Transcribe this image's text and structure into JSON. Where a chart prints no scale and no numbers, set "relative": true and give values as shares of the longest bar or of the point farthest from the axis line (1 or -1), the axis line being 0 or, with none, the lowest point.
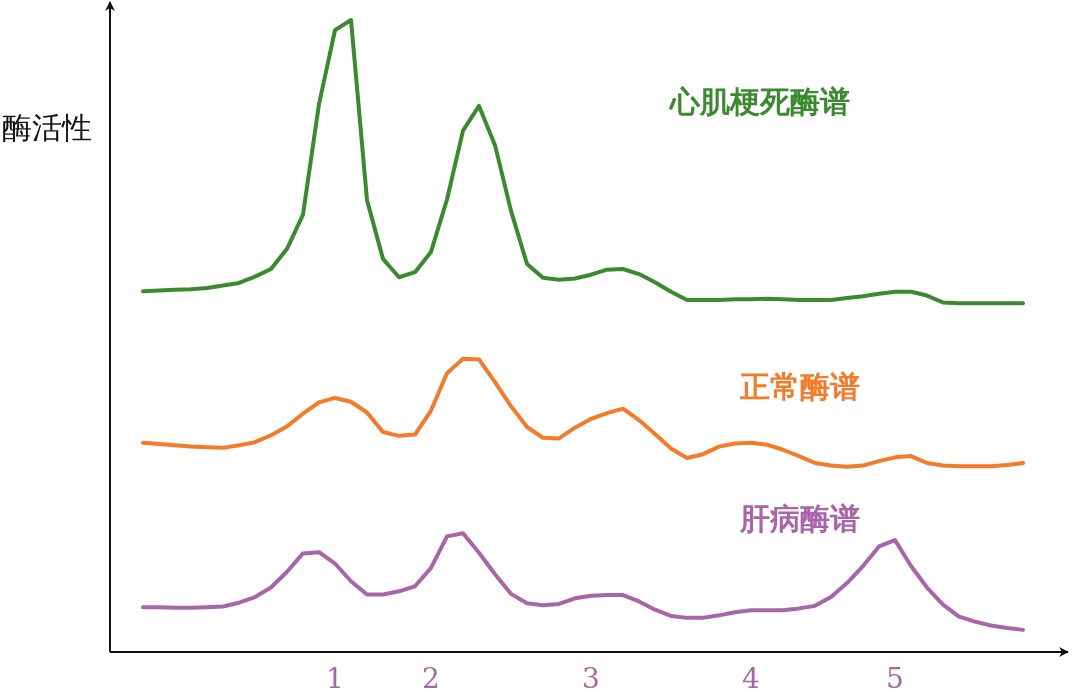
{
  "chart_data": {
    "type": "line",
    "ylabel": "酶活性",
    "relative": true,
    "categories": [
      null,
      null,
      null,
      null,
      null,
      null,
      null,
      null,
      null,
      null,
      null,
      null,
      "1",
      null,
      null,
      null,
      null,
      null,
      "2",
      null,
      null,
      null,
      null,
      null,
      null,
      null,
      null,
      null,
      "3",
      null,
      null,
      null,
      null,
      null,
      null,
      null,
      null,
      null,
      "4",
      null,
      null,
      null,
      null,
      null,
      null,
      null,
      null,
      "5",
      null,
      null,
      null,
      null,
      null,
      null,
      null,
      null
    ],
    "series": [
      {
        "name": "心肌梗死酶谱",
        "color": "#3b8a30",
        "values": [
          0.571,
          0.572,
          0.573,
          0.574,
          0.576,
          0.58,
          0.584,
          0.594,
          0.606,
          0.638,
          0.692,
          0.867,
          0.984,
          1.0,
          0.715,
          0.622,
          0.593,
          0.601,
          0.633,
          0.716,
          0.825,
          0.864,
          0.802,
          0.698,
          0.614,
          0.592,
          0.589,
          0.591,
          0.597,
          0.605,
          0.606,
          0.598,
          0.585,
          0.57,
          0.557,
          0.557,
          0.557,
          0.558,
          0.558,
          0.559,
          0.558,
          0.557,
          0.557,
          0.557,
          0.56,
          0.563,
          0.567,
          0.57,
          0.57,
          0.564,
          0.553,
          0.552,
          0.552,
          0.552,
          0.552,
          0.552
        ]
      },
      {
        "name": "正常酶谱",
        "color": "#f47b2a",
        "values": [
          0.331,
          0.329,
          0.327,
          0.325,
          0.324,
          0.323,
          0.327,
          0.332,
          0.343,
          0.357,
          0.377,
          0.395,
          0.402,
          0.396,
          0.379,
          0.348,
          0.342,
          0.344,
          0.382,
          0.441,
          0.464,
          0.463,
          0.427,
          0.389,
          0.356,
          0.339,
          0.338,
          0.355,
          0.369,
          0.378,
          0.385,
          0.367,
          0.345,
          0.322,
          0.307,
          0.313,
          0.325,
          0.33,
          0.331,
          0.328,
          0.32,
          0.31,
          0.299,
          0.295,
          0.293,
          0.295,
          0.302,
          0.308,
          0.31,
          0.299,
          0.295,
          0.294,
          0.294,
          0.294,
          0.296,
          0.299
        ]
      },
      {
        "name": "肝病酶谱",
        "color": "#a865a8",
        "values": [
          0.071,
          0.071,
          0.07,
          0.07,
          0.071,
          0.072,
          0.078,
          0.087,
          0.102,
          0.127,
          0.156,
          0.158,
          0.14,
          0.112,
          0.091,
          0.091,
          0.096,
          0.104,
          0.133,
          0.183,
          0.188,
          0.157,
          0.123,
          0.092,
          0.077,
          0.074,
          0.076,
          0.085,
          0.089,
          0.09,
          0.09,
          0.08,
          0.067,
          0.057,
          0.054,
          0.054,
          0.058,
          0.063,
          0.066,
          0.066,
          0.066,
          0.069,
          0.073,
          0.087,
          0.109,
          0.136,
          0.167,
          0.177,
          0.136,
          0.102,
          0.075,
          0.056,
          0.048,
          0.042,
          0.038,
          0.035
        ]
      }
    ]
  }
}
